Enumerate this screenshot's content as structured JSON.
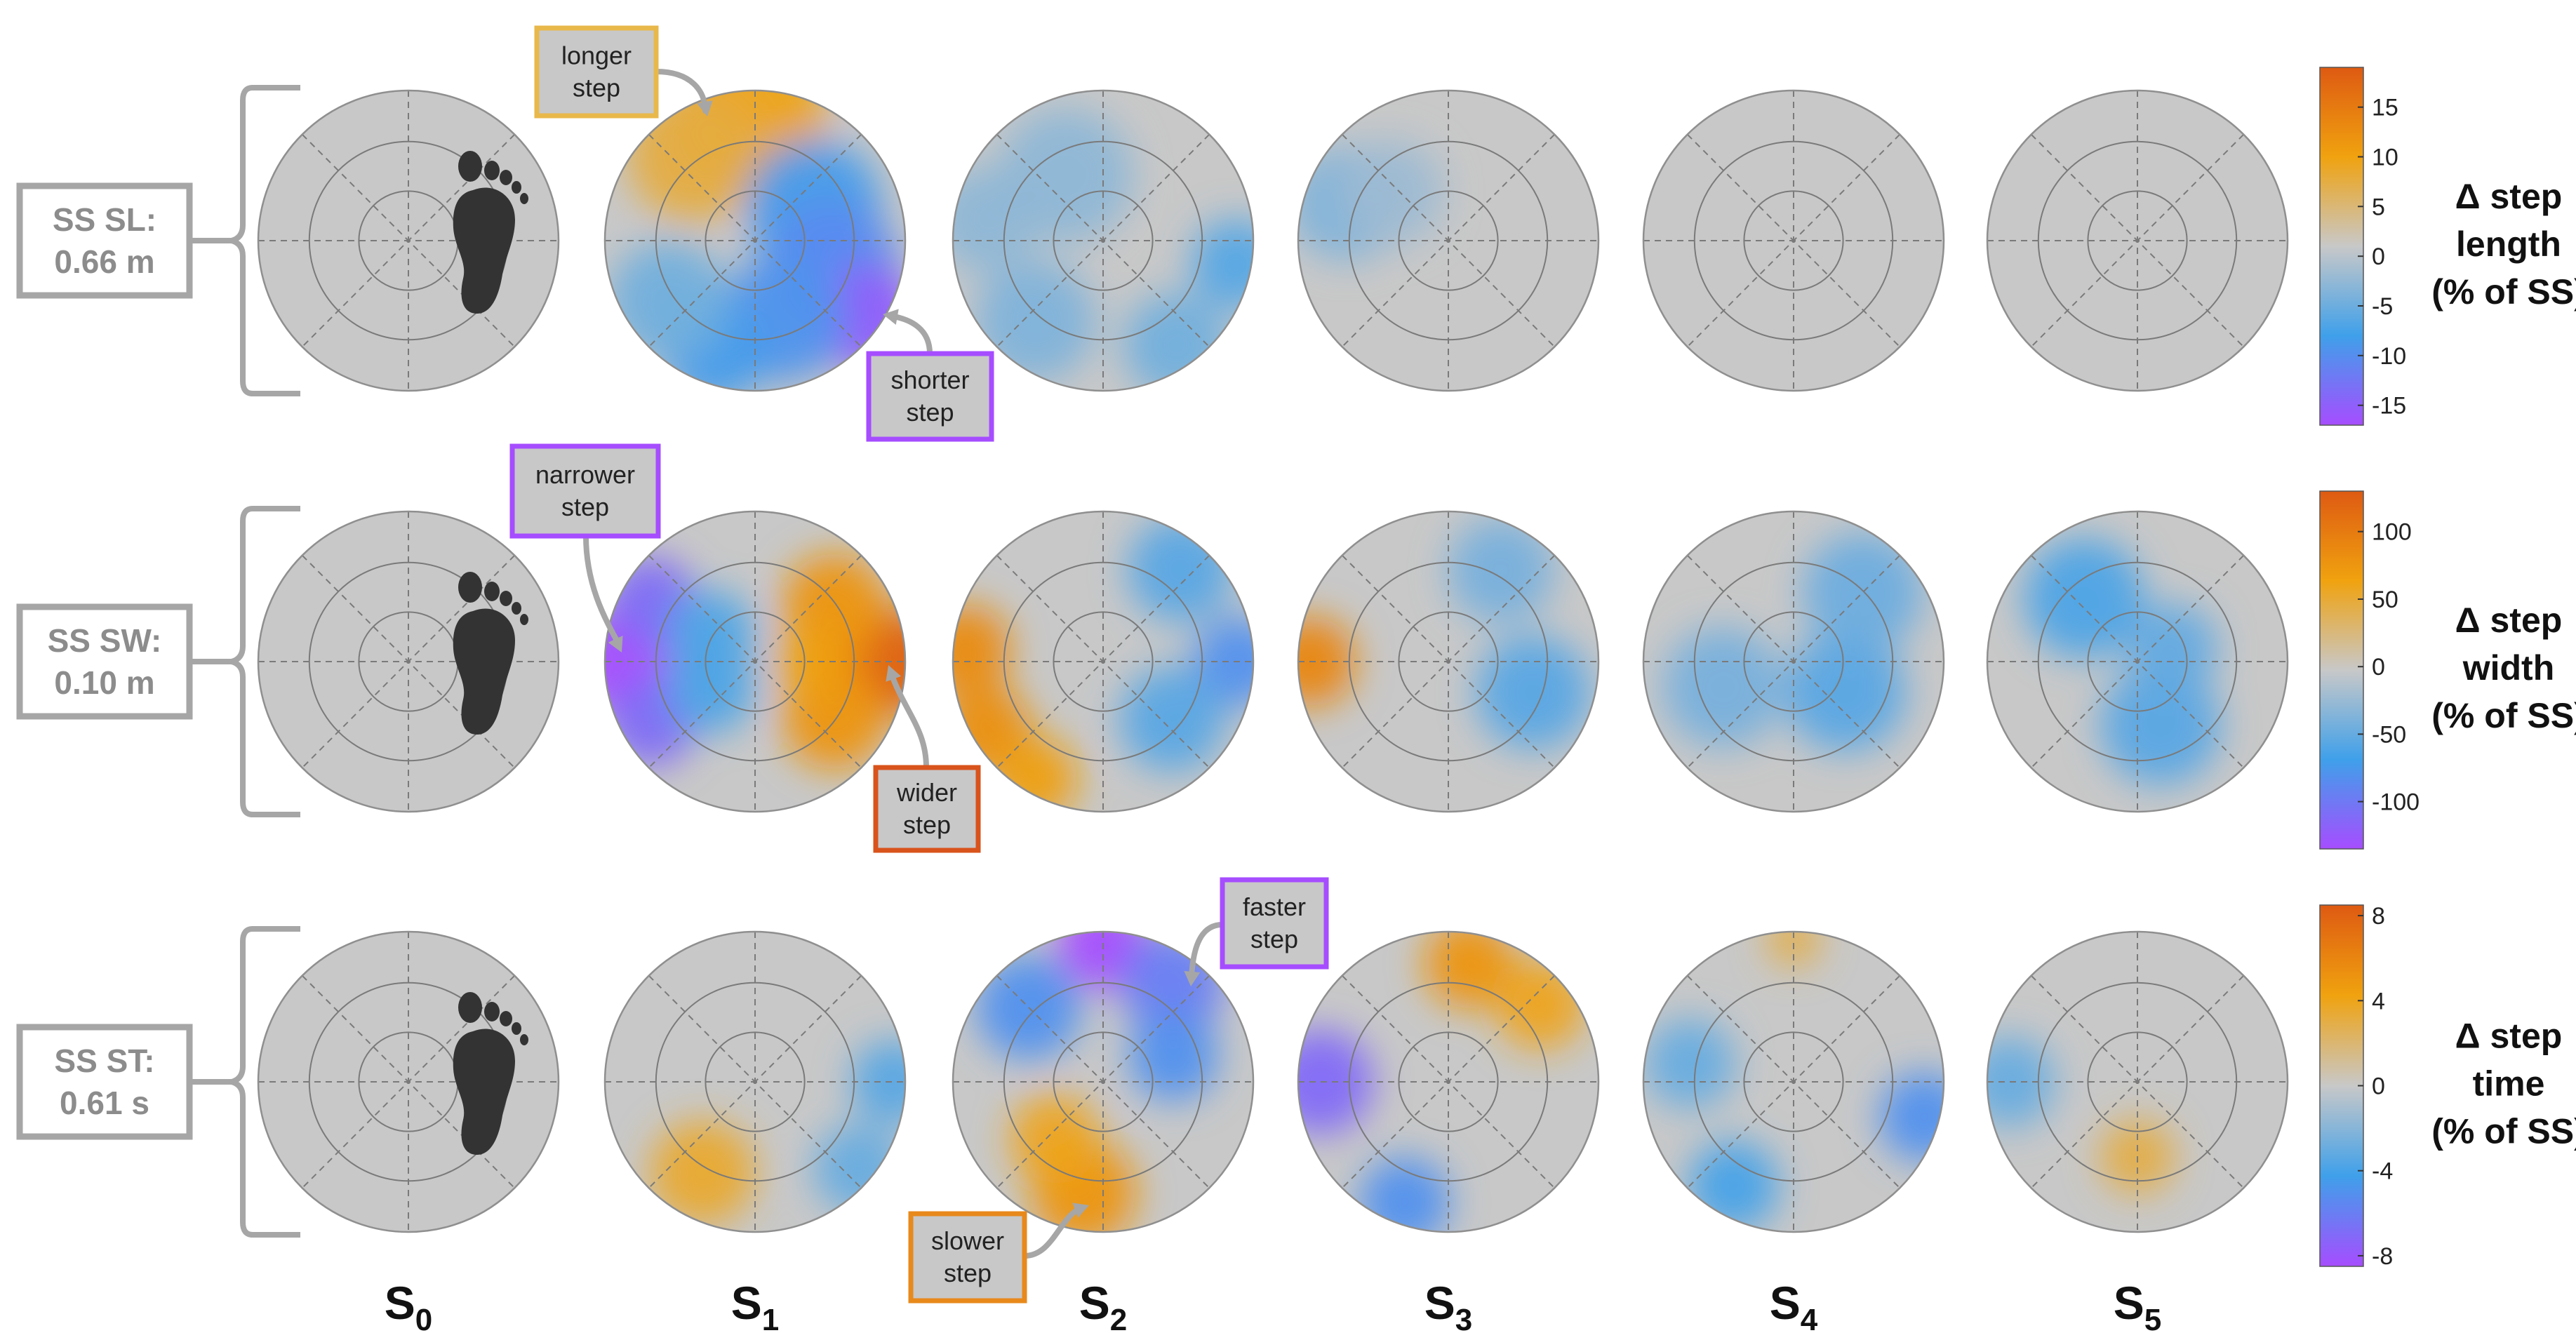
{
  "colors": {
    "disk_base": "#c8c8c8",
    "scale": [
      "#a64dff",
      "#3fa0ea",
      "#c8c8c8",
      "#f0a20f",
      "#de5a12"
    ],
    "annotation_positive_long": "#e8b84a",
    "annotation_negative": "#a64dff",
    "annotation_positive_wide": "#d9531c",
    "annotation_slower": "#e8891c",
    "bracket": "#a6a6a6"
  },
  "chart_data": {
    "type": "polar-heatmap-grid",
    "columns": [
      {
        "base": "S",
        "sub": "0"
      },
      {
        "base": "S",
        "sub": "1"
      },
      {
        "base": "S",
        "sub": "2"
      },
      {
        "base": "S",
        "sub": "3"
      },
      {
        "base": "S",
        "sub": "4"
      },
      {
        "base": "S",
        "sub": "5"
      }
    ],
    "rows": [
      {
        "name": "step-length",
        "ss_label_line1": "SS SL:",
        "ss_label_line2": "0.66 m",
        "colorbar": {
          "label_lines": [
            "Δ step",
            "length",
            "(% of SS)"
          ],
          "range": [
            -17,
            19
          ],
          "ticks": [
            15,
            10,
            5,
            0,
            -5,
            -10,
            -15
          ],
          "tick_labels": [
            "15",
            "10",
            "5",
            "0",
            "-5",
            "-10",
            "-15"
          ]
        },
        "annotations": [
          {
            "lines": [
              "longer",
              "step"
            ],
            "color": "#e8b84a"
          },
          {
            "lines": [
              "shorter",
              "step"
            ],
            "color": "#a64dff"
          }
        ],
        "patches": [
          [],
          [
            {
              "angle": 92,
              "radius": 0.85,
              "value": 9,
              "spread": 0.5
            },
            {
              "angle": 125,
              "radius": 0.7,
              "value": 7,
              "spread": 0.45
            },
            {
              "angle": 30,
              "radius": 0.45,
              "value": -10,
              "spread": 0.45
            },
            {
              "angle": -20,
              "radius": 0.55,
              "value": -12,
              "spread": 0.45
            },
            {
              "angle": -35,
              "radius": 0.9,
              "value": -17,
              "spread": 0.35
            },
            {
              "angle": -70,
              "radius": 0.55,
              "value": -11,
              "spread": 0.42
            },
            {
              "angle": -110,
              "radius": 0.78,
              "value": -10,
              "spread": 0.35
            },
            {
              "angle": -145,
              "radius": 0.7,
              "value": -6,
              "spread": 0.4
            }
          ],
          [
            {
              "angle": 120,
              "radius": 0.5,
              "value": -4,
              "spread": 0.45
            },
            {
              "angle": -10,
              "radius": 0.9,
              "value": -8,
              "spread": 0.3
            },
            {
              "angle": -55,
              "radius": 0.85,
              "value": -6,
              "spread": 0.35
            },
            {
              "angle": -130,
              "radius": 0.7,
              "value": -5,
              "spread": 0.4
            },
            {
              "angle": 170,
              "radius": 0.8,
              "value": -4,
              "spread": 0.35
            }
          ],
          [
            {
              "angle": 160,
              "radius": 0.72,
              "value": -5,
              "spread": 0.38
            },
            {
              "angle": 140,
              "radius": 0.5,
              "value": -3,
              "spread": 0.35
            }
          ],
          [],
          []
        ]
      },
      {
        "name": "step-width",
        "ss_label_line1": "SS SW:",
        "ss_label_line2": "0.10 m",
        "colorbar": {
          "label_lines": [
            "Δ step",
            "width",
            "(% of SS)"
          ],
          "range": [
            -135,
            130
          ],
          "ticks": [
            100,
            50,
            0,
            -50,
            -100
          ],
          "tick_labels": [
            "100",
            "50",
            "0",
            "-50",
            "-100"
          ]
        },
        "annotations": [
          {
            "lines": [
              "narrower",
              "step"
            ],
            "color": "#a64dff"
          },
          {
            "lines": [
              "wider",
              "step"
            ],
            "color": "#d9531c"
          }
        ],
        "patches": [
          [],
          [
            {
              "angle": 180,
              "radius": 0.9,
              "value": -135,
              "spread": 0.35
            },
            {
              "angle": 150,
              "radius": 0.8,
              "value": -110,
              "spread": 0.3
            },
            {
              "angle": 210,
              "radius": 0.8,
              "value": -110,
              "spread": 0.3
            },
            {
              "angle": 150,
              "radius": 0.35,
              "value": -60,
              "spread": 0.3
            },
            {
              "angle": 210,
              "radius": 0.35,
              "value": -60,
              "spread": 0.3
            },
            {
              "angle": 0,
              "radius": 0.92,
              "value": 130,
              "spread": 0.35
            },
            {
              "angle": 35,
              "radius": 0.65,
              "value": 80,
              "spread": 0.35
            },
            {
              "angle": -35,
              "radius": 0.65,
              "value": 80,
              "spread": 0.35
            },
            {
              "angle": 0,
              "radius": 0.4,
              "value": 70,
              "spread": 0.25
            }
          ],
          [
            {
              "angle": 175,
              "radius": 0.92,
              "value": 90,
              "spread": 0.3
            },
            {
              "angle": 210,
              "radius": 0.9,
              "value": 85,
              "spread": 0.3
            },
            {
              "angle": 240,
              "radius": 0.9,
              "value": 70,
              "spread": 0.28
            },
            {
              "angle": 0,
              "radius": 0.9,
              "value": -80,
              "spread": 0.3
            },
            {
              "angle": -40,
              "radius": 0.6,
              "value": -55,
              "spread": 0.35
            },
            {
              "angle": 50,
              "radius": 0.8,
              "value": -55,
              "spread": 0.35
            }
          ],
          [
            {
              "angle": 180,
              "radius": 0.92,
              "value": 95,
              "spread": 0.3
            },
            {
              "angle": -20,
              "radius": 0.6,
              "value": -55,
              "spread": 0.38
            },
            {
              "angle": 60,
              "radius": 0.7,
              "value": -40,
              "spread": 0.35
            }
          ],
          [
            {
              "angle": -30,
              "radius": 0.4,
              "value": -55,
              "spread": 0.4
            },
            {
              "angle": 45,
              "radius": 0.65,
              "value": -45,
              "spread": 0.4
            },
            {
              "angle": 200,
              "radius": 0.5,
              "value": -40,
              "spread": 0.4
            }
          ],
          [
            {
              "angle": 130,
              "radius": 0.55,
              "value": -60,
              "spread": 0.4
            },
            {
              "angle": -70,
              "radius": 0.45,
              "value": -55,
              "spread": 0.4
            },
            {
              "angle": 20,
              "radius": 0.25,
              "value": -50,
              "spread": 0.3
            }
          ]
        ]
      },
      {
        "name": "step-time",
        "ss_label_line1": "SS ST:",
        "ss_label_line2": "0.61 s",
        "colorbar": {
          "label_lines": [
            "Δ step",
            "time",
            "(% of SS)"
          ],
          "range": [
            -8.5,
            8.5
          ],
          "ticks": [
            8,
            4,
            0,
            -4,
            -8
          ],
          "tick_labels": [
            "8",
            "4",
            "0",
            "-4",
            "-8"
          ]
        },
        "annotations": [
          {
            "lines": [
              "faster",
              "step"
            ],
            "color": "#a64dff"
          },
          {
            "lines": [
              "slower",
              "step"
            ],
            "color": "#e8891c"
          }
        ],
        "patches": [
          [],
          [
            {
              "angle": -120,
              "radius": 0.7,
              "value": 3.5,
              "spread": 0.35
            },
            {
              "angle": 0,
              "radius": 0.92,
              "value": -3.5,
              "spread": 0.28
            },
            {
              "angle": -40,
              "radius": 0.9,
              "value": -3,
              "spread": 0.3
            }
          ],
          [
            {
              "angle": 90,
              "radius": 0.92,
              "value": -8.5,
              "spread": 0.3
            },
            {
              "angle": 55,
              "radius": 0.8,
              "value": -6,
              "spread": 0.35
            },
            {
              "angle": 135,
              "radius": 0.7,
              "value": -5,
              "spread": 0.35
            },
            {
              "angle": 20,
              "radius": 0.5,
              "value": -5,
              "spread": 0.3
            },
            {
              "angle": -100,
              "radius": 0.75,
              "value": 5,
              "spread": 0.35
            },
            {
              "angle": -130,
              "radius": 0.5,
              "value": 4,
              "spread": 0.3
            }
          ],
          [
            {
              "angle": 80,
              "radius": 0.8,
              "value": 5,
              "spread": 0.3
            },
            {
              "angle": 40,
              "radius": 0.8,
              "value": 4,
              "spread": 0.3
            },
            {
              "angle": 180,
              "radius": 0.85,
              "value": -7,
              "spread": 0.35
            },
            {
              "angle": -110,
              "radius": 0.85,
              "value": -5,
              "spread": 0.3
            }
          ],
          [
            {
              "angle": 90,
              "radius": 0.95,
              "value": 3,
              "spread": 0.18
            },
            {
              "angle": -15,
              "radius": 0.9,
              "value": -5,
              "spread": 0.3
            },
            {
              "angle": -120,
              "radius": 0.8,
              "value": -4,
              "spread": 0.3
            },
            {
              "angle": 170,
              "radius": 0.7,
              "value": -3,
              "spread": 0.3
            }
          ],
          [
            {
              "angle": -90,
              "radius": 0.5,
              "value": 3,
              "spread": 0.25
            },
            {
              "angle": 180,
              "radius": 0.85,
              "value": -3,
              "spread": 0.3
            }
          ]
        ]
      }
    ]
  }
}
